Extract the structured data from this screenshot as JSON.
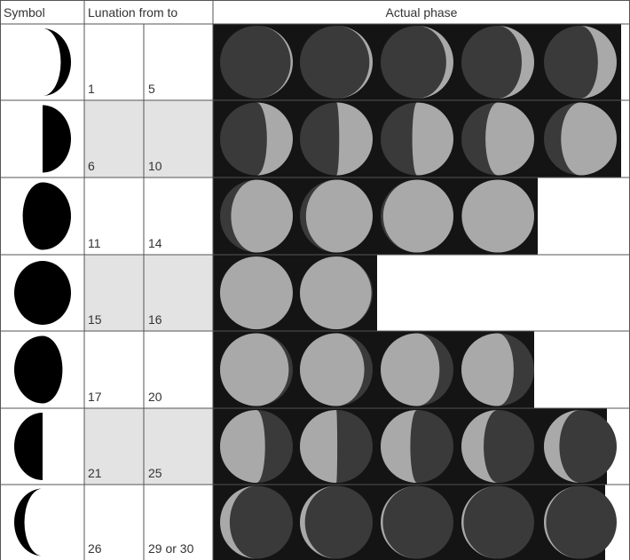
{
  "table": {
    "header": [
      "Symbol",
      "Lunation from to",
      "Actual phase"
    ],
    "rows": [
      [
        "1",
        "5"
      ],
      [
        "6",
        "10"
      ],
      [
        "11",
        "14"
      ],
      [
        "15",
        "16"
      ],
      [
        "17",
        "20"
      ],
      [
        "21",
        "25"
      ],
      [
        "26",
        "29 or 30"
      ]
    ]
  }
}
